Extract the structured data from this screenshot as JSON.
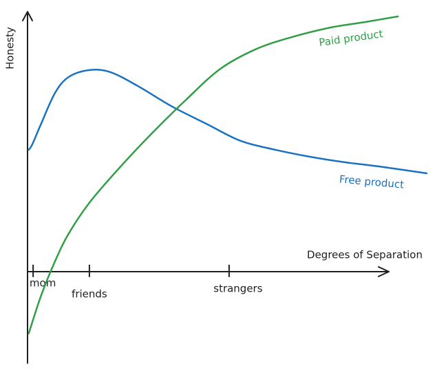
{
  "chart_data": {
    "type": "line",
    "x_label": "Degrees of Separation",
    "y_label": "Honesty",
    "xlim": [
      0,
      100
    ],
    "ylim": [
      -37,
      105
    ],
    "xticks": [
      {
        "value": 1.4,
        "label": "mom"
      },
      {
        "value": 15.5,
        "label": "friends"
      },
      {
        "value": 50.5,
        "label": "strangers"
      }
    ],
    "series": [
      {
        "name": "Free product",
        "color": "#1971c2",
        "x": [
          0.3,
          1.2,
          3.4,
          6.9,
          10.3,
          15.5,
          20.7,
          27.6,
          36.2,
          44.8,
          53.4,
          62.1,
          70.7,
          79.3,
          87.9,
          100
        ],
        "values": [
          49.2,
          51.4,
          59.7,
          72.2,
          78.6,
          81.4,
          80.6,
          75,
          66.7,
          59.7,
          52.8,
          49.2,
          46.4,
          44.2,
          42.5,
          39.7
        ]
      },
      {
        "name": "Paid product",
        "color": "#2f9e44",
        "x": [
          0.3,
          3.4,
          6.9,
          10.3,
          15.5,
          22.4,
          31,
          39.7,
          48.3,
          57,
          65.5,
          75.9,
          84.5,
          92.8
        ],
        "values": [
          -25,
          -9.7,
          4.2,
          15.3,
          27.8,
          40.8,
          55.6,
          69.4,
          81.9,
          89.7,
          94.4,
          98.6,
          100.8,
          103.1
        ]
      }
    ]
  }
}
